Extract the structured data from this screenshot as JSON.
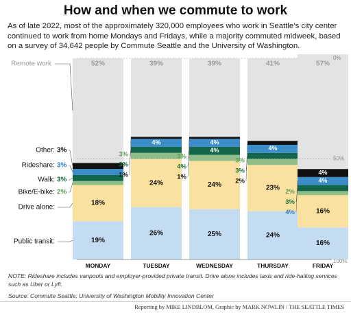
{
  "header": {
    "title": "How and when we commute to work",
    "subtitle": "As of late 2022, most of the approximately 320,000 employees who work in Seattle’s city center continued to work from home Mondays and Fridays, while a majority commuted midweek, based on a survey of 34,642 people by Commute Seattle and the University of Washington."
  },
  "footer": {
    "note": "NOTE: Rideshare includes vanpools and employer-provided private transit. Drive alone includes taxis and ride-hailing services such as Uber or Lyft.",
    "source": "Source: Commute Seattle; University of Washington Mobility Innovation Center",
    "credits": "Reporting by MIKE LINDBLOM, Graphic by MARK NOWLIN / THE SEATTLE TIMES"
  },
  "colors": {
    "public_transit": "#c3dcf2",
    "drive_alone": "#fbe1a0",
    "bike": "#8fbf86",
    "walk": "#14664a",
    "rideshare": "#3a8dc8",
    "other": "#111111",
    "remote": "#e3e3e3",
    "label_walk": "#15703c",
    "label_rideshare": "#2f80c0",
    "label_bike": "#5e9e58"
  },
  "chart_data": {
    "type": "bar",
    "stacked": true,
    "categories": [
      "MONDAY",
      "TUESDAY",
      "WEDNESDAY",
      "THURSDAY",
      "FRIDAY"
    ],
    "series": [
      {
        "name": "Public transit",
        "values": [
          19,
          26,
          25,
          24,
          16
        ],
        "labels": [
          "19%",
          "26%",
          "25%",
          "24%",
          "16%"
        ]
      },
      {
        "name": "Drive alone",
        "values": [
          18,
          24,
          24,
          23,
          16
        ],
        "labels": [
          "18%",
          "24%",
          "24%",
          "23%",
          "16%"
        ]
      },
      {
        "name": "Bike/E-bike",
        "values": [
          2,
          3,
          3,
          3,
          2
        ],
        "labels": [
          "2%",
          "3%",
          "3%",
          "3%",
          "2%"
        ]
      },
      {
        "name": "Walk",
        "values": [
          3,
          3,
          4,
          3,
          3
        ],
        "labels": [
          "3%",
          "3%",
          "4%",
          "3%",
          "3%"
        ]
      },
      {
        "name": "Rideshare",
        "values": [
          3,
          4,
          4,
          4,
          4
        ],
        "labels": [
          "3%",
          "4%",
          "4%",
          "4%",
          "4%"
        ]
      },
      {
        "name": "Other",
        "values": [
          3,
          1,
          1,
          2,
          4
        ],
        "labels": [
          "3%",
          "1%",
          "1%",
          "2%",
          "4%"
        ]
      },
      {
        "name": "Remote work",
        "values": [
          52,
          39,
          39,
          41,
          57
        ],
        "labels": [
          "52%",
          "39%",
          "39%",
          "41%",
          "57%"
        ]
      }
    ],
    "ylim": [
      0,
      100
    ],
    "ytick_labels": [
      "0%",
      "50%",
      "100%"
    ],
    "reference_line": 50
  }
}
